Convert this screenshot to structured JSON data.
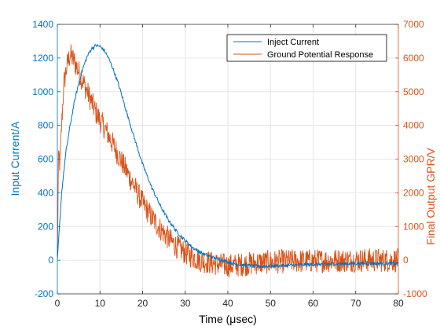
{
  "chart_data": {
    "type": "line",
    "title": "",
    "xlabel": "Time (μsec)",
    "ylabel_left": "Input Current/A",
    "ylabel_right": "Final Output GPR/V",
    "xlim": [
      0,
      80
    ],
    "ylim_left": [
      -200,
      1400
    ],
    "ylim_right": [
      -1000,
      7000
    ],
    "x_ticks": [
      "0",
      "10",
      "20",
      "30",
      "40",
      "50",
      "60",
      "70",
      "80"
    ],
    "y_ticks_left": [
      "-200",
      "0",
      "200",
      "400",
      "600",
      "800",
      "1000",
      "1200",
      "1400"
    ],
    "y_ticks_right": [
      "-1000",
      "0",
      "1000",
      "2000",
      "3000",
      "4000",
      "5000",
      "6000",
      "7000"
    ],
    "grid": true,
    "legend_position": "top-right",
    "colors": {
      "left": "#0072BD",
      "right": "#D95319"
    },
    "series": [
      {
        "name": "Inject Current",
        "axis": "left",
        "color": "#0072BD",
        "x": [
          0,
          0.5,
          1,
          2,
          3,
          4,
          5,
          6,
          7,
          8,
          9,
          10,
          11,
          12,
          13,
          14,
          15,
          16,
          17,
          18,
          19,
          20,
          22,
          24,
          26,
          28,
          30,
          32,
          34,
          36,
          38,
          40,
          42,
          44,
          46,
          48,
          50,
          55,
          60,
          65,
          70,
          75,
          80
        ],
        "y": [
          0,
          200,
          400,
          640,
          800,
          940,
          1050,
          1140,
          1210,
          1255,
          1275,
          1270,
          1245,
          1200,
          1140,
          1070,
          990,
          900,
          815,
          730,
          650,
          570,
          440,
          330,
          240,
          170,
          115,
          70,
          40,
          20,
          5,
          -10,
          -25,
          -30,
          -35,
          -38,
          -35,
          -30,
          -25,
          -22,
          -20,
          -20,
          -20
        ]
      },
      {
        "name": "Ground Potential Response",
        "axis": "right",
        "color": "#D95319",
        "x": [
          0,
          0.3,
          0.6,
          1,
          1.5,
          2,
          2.5,
          3,
          4,
          5,
          6,
          7,
          8,
          9,
          10,
          11,
          12,
          13,
          14,
          15,
          16,
          17,
          18,
          19,
          20,
          22,
          24,
          26,
          28,
          30,
          32,
          34,
          36,
          38,
          40,
          42,
          44,
          46,
          48,
          50,
          55,
          60,
          65,
          70,
          75,
          80
        ],
        "y": [
          0,
          3200,
          2800,
          4000,
          5200,
          5600,
          5900,
          6100,
          5900,
          5600,
          5300,
          5000,
          4700,
          4400,
          4150,
          3950,
          3700,
          3450,
          3200,
          2950,
          2700,
          2450,
          2200,
          1950,
          1700,
          1300,
          950,
          650,
          400,
          220,
          80,
          -20,
          -80,
          -130,
          -160,
          -150,
          -120,
          -90,
          -70,
          -50,
          -30,
          -20,
          -10,
          0,
          0,
          0
        ]
      }
    ]
  }
}
